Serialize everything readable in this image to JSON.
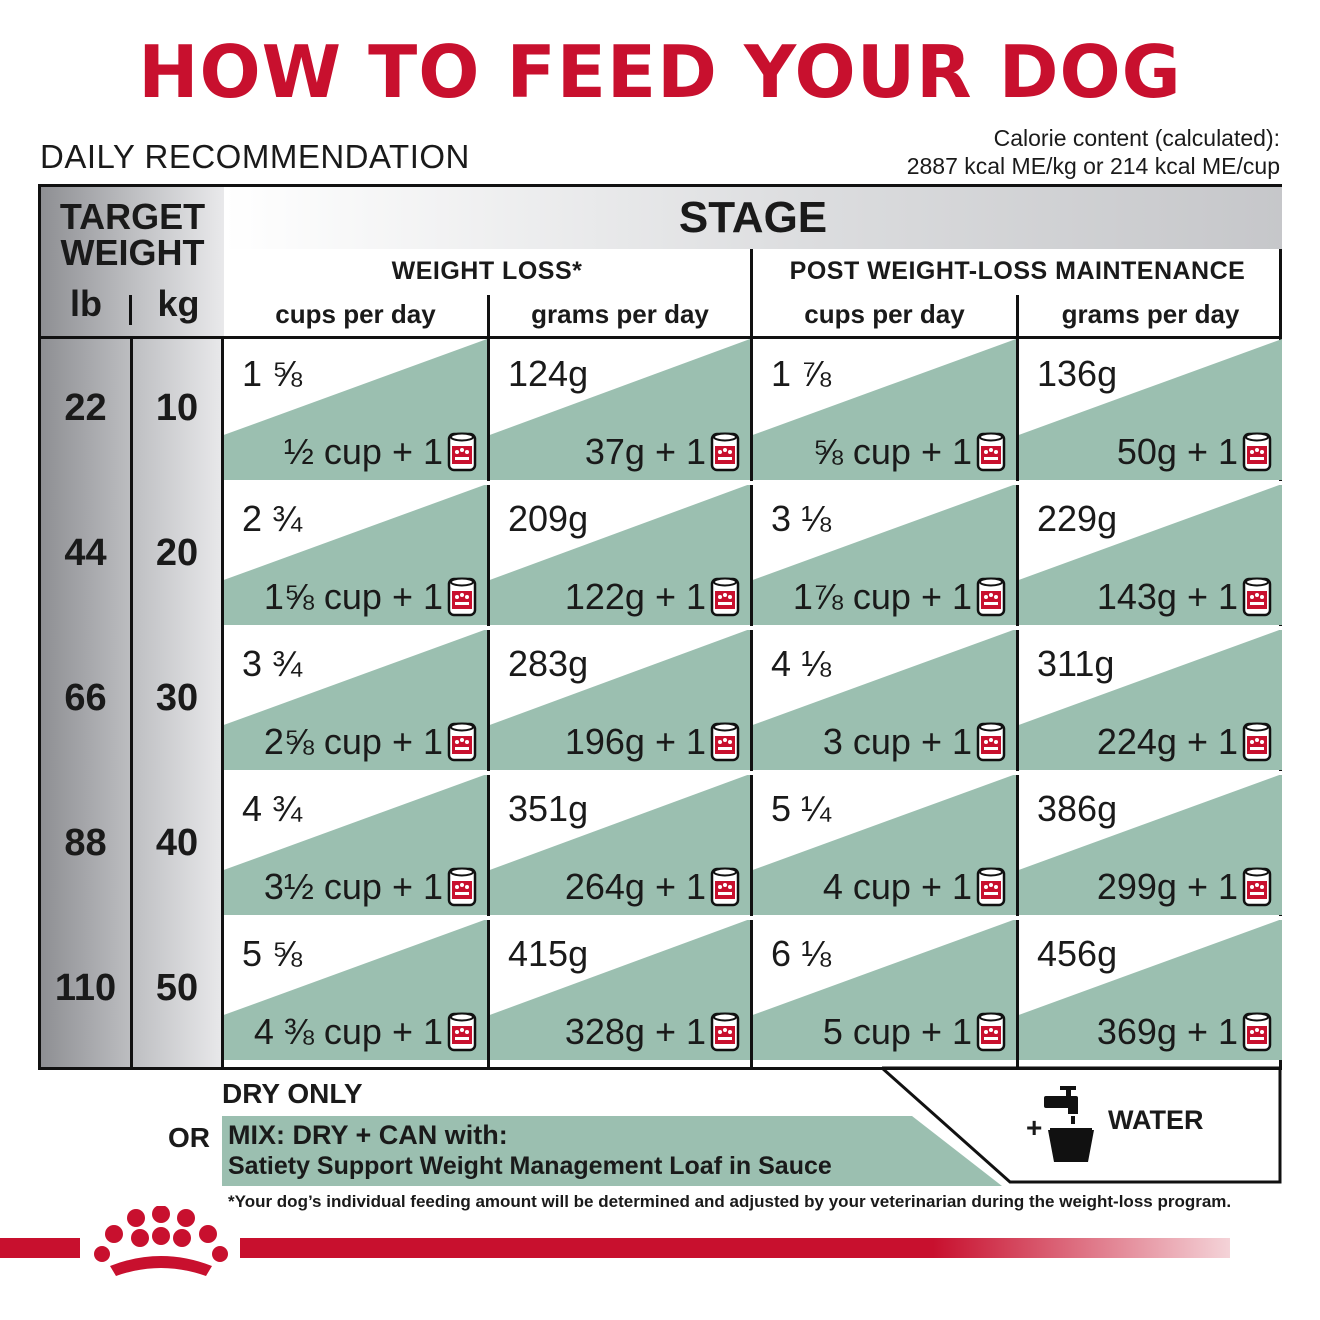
{
  "title": "HOW TO FEED YOUR DOG",
  "daily_recommendation": "DAILY RECOMMENDATION",
  "calorie": {
    "line1": "Calorie content (calculated):",
    "line2": "2887 kcal ME/kg or 214 kcal ME/cup"
  },
  "table": {
    "target_weight": "TARGET WEIGHT",
    "unit_lb": "lb",
    "unit_kg": "kg",
    "stage": "STAGE",
    "stages": [
      {
        "name": "WEIGHT LOSS*",
        "cols": [
          "cups per day",
          "grams per day"
        ]
      },
      {
        "name": "POST WEIGHT-LOSS MAINTENANCE",
        "cols": [
          "cups per day",
          "grams per day"
        ]
      }
    ],
    "rows": [
      {
        "lb": "22",
        "kg": "10",
        "cells": [
          {
            "main": "1 ⅝",
            "mix": "½ cup + 1"
          },
          {
            "main": "124g",
            "mix": "37g + 1"
          },
          {
            "main": "1 ⅞",
            "mix": "⅝ cup + 1"
          },
          {
            "main": "136g",
            "mix": "50g + 1"
          }
        ]
      },
      {
        "lb": "44",
        "kg": "20",
        "cells": [
          {
            "main": "2 ¾",
            "mix": "1⅝ cup + 1"
          },
          {
            "main": "209g",
            "mix": "122g + 1"
          },
          {
            "main": "3 ⅛",
            "mix": "1⅞ cup + 1"
          },
          {
            "main": "229g",
            "mix": "143g + 1"
          }
        ]
      },
      {
        "lb": "66",
        "kg": "30",
        "cells": [
          {
            "main": "3 ¾",
            "mix": "2⅝ cup + 1"
          },
          {
            "main": "283g",
            "mix": "196g + 1"
          },
          {
            "main": "4 ⅛",
            "mix": "3 cup + 1"
          },
          {
            "main": "311g",
            "mix": "224g + 1"
          }
        ]
      },
      {
        "lb": "88",
        "kg": "40",
        "cells": [
          {
            "main": "4 ¾",
            "mix": "3½ cup + 1"
          },
          {
            "main": "351g",
            "mix": "264g + 1"
          },
          {
            "main": "5 ¼",
            "mix": "4 cup + 1"
          },
          {
            "main": "386g",
            "mix": "299g + 1"
          }
        ]
      },
      {
        "lb": "110",
        "kg": "50",
        "cells": [
          {
            "main": "5 ⅝",
            "mix": "4 ⅜ cup + 1"
          },
          {
            "main": "415g",
            "mix": "328g + 1"
          },
          {
            "main": "6 ⅛",
            "mix": "5 cup + 1"
          },
          {
            "main": "456g",
            "mix": "369g + 1"
          }
        ]
      }
    ]
  },
  "bottom": {
    "dry_only": "DRY ONLY",
    "or": "OR",
    "mix_line1": "MIX: DRY + CAN with:",
    "mix_line2": "Satiety Support Weight Management Loaf in Sauce",
    "water": "WATER",
    "plus": "+"
  },
  "footnote": "*Your dog’s individual feeding amount will be determined and adjusted by your veterinarian during the weight-loss program.",
  "colors": {
    "brand_red": "#c8102e",
    "mix_green": "#9bbfb0",
    "grid": "#111111"
  },
  "icons": [
    "can-icon",
    "water-faucet-icon",
    "royal-canin-crown-logo"
  ]
}
